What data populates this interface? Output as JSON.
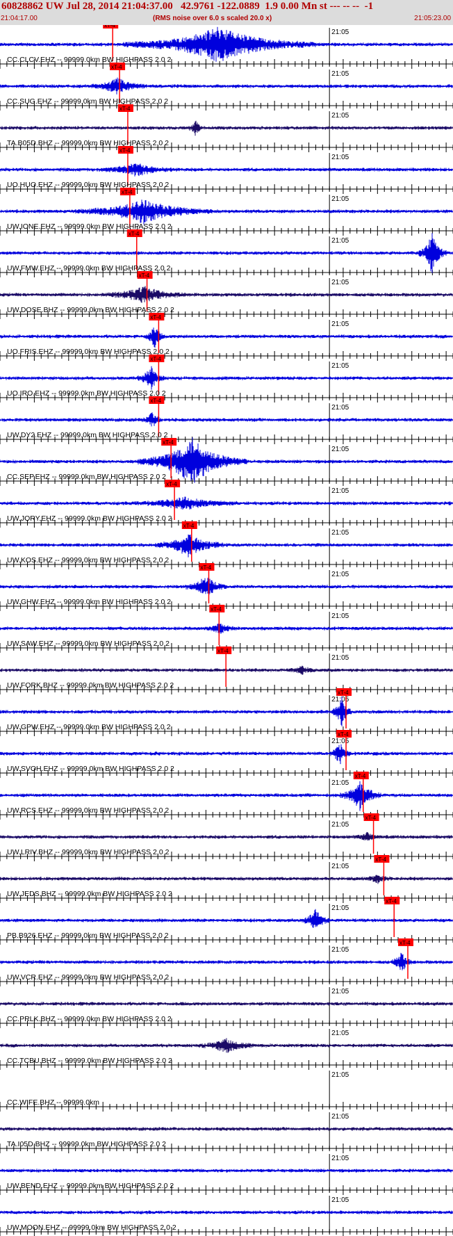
{
  "header": {
    "title": "60828862 UW Jul 28, 2014 21:04:37.00   42.9761 -122.0889  1.9 0.00 Mn st --- -- --  -1",
    "start_time": "21:04:17.00",
    "rms_note": "(RMS noise over 6.0 s scaled 20.0 x)",
    "end_time": "21:05:23.00"
  },
  "colors": {
    "trace": "#0000dd",
    "trace_dark": "#1a0a66",
    "pick": "#ff0000",
    "axis": "#000000",
    "header_text": "#b00000"
  },
  "chart_data": {
    "type": "line",
    "title": "60828862 UW Jul 28, 2014 21:04:37.00",
    "time_range": [
      "21:04:17.00",
      "21:05:23.00"
    ],
    "minute_mark": "21:05",
    "pick_label": "xT-4",
    "series": [
      {
        "label": "CC.CLCV.EHZ -- 99999.0km BW  HIGHPASS  2.0  2",
        "pick_s": 15.0,
        "color": "blue",
        "event": {
          "center": 32,
          "width": 14,
          "amp": 4.5
        }
      },
      {
        "label": "CC.SUG.EHZ -- 99999.0km BW  HIGHPASS  2.0  2",
        "pick_s": 16.0,
        "color": "blue",
        "event": {
          "center": 17.2,
          "width": 4,
          "amp": 2
        }
      },
      {
        "label": "TA.B05D.BHZ -- 99999.0km BW  HIGHPASS  2.0  2",
        "pick_s": 17.2,
        "color": "dark",
        "event": {
          "center": 28.5,
          "width": 1,
          "amp": 2
        }
      },
      {
        "label": "UO.HUO.EHZ -- 99999.0km BW  HIGHPASS  2.0  2",
        "pick_s": 17.2,
        "color": "blue",
        "event": {
          "center": 20,
          "width": 6,
          "amp": 1.5
        }
      },
      {
        "label": "UW.IONE.EHZ -- 99999.0km BW  HIGHPASS  2.0  2",
        "pick_s": 17.5,
        "color": "blue",
        "event": {
          "center": 21,
          "width": 10,
          "amp": 3
        }
      },
      {
        "label": "UW.FMW.EHZ -- 99999.0km BW  HIGHPASS  2.0  2",
        "pick_s": 18.5,
        "color": "blue",
        "event": {
          "center": 63,
          "width": 2,
          "amp": 6
        }
      },
      {
        "label": "UW.DOSE.BHZ -- 99999.0km BW  HIGHPASS  2.0  2",
        "pick_s": 20.0,
        "color": "dark",
        "event": {
          "center": 21,
          "width": 6,
          "amp": 2
        }
      },
      {
        "label": "UO.FRIS.EHZ -- 99999.0km BW  HIGHPASS  2.0  2",
        "pick_s": 21.7,
        "color": "blue",
        "event": {
          "center": 22.5,
          "width": 1.5,
          "amp": 3
        }
      },
      {
        "label": "UO.IRO.EHZ -- 99999.0km BW  HIGHPASS  2.0  2",
        "pick_s": 21.7,
        "color": "blue",
        "event": {
          "center": 22,
          "width": 2,
          "amp": 3
        }
      },
      {
        "label": "UW.DY2.EHZ -- 99999.0km BW  HIGHPASS  2.0  2",
        "pick_s": 21.7,
        "color": "blue",
        "event": {
          "center": 22.2,
          "width": 1.5,
          "amp": 2
        }
      },
      {
        "label": "CC.SEP.EHZ -- 99999.0km BW  HIGHPASS  2.0  2",
        "pick_s": 23.5,
        "color": "blue",
        "event": {
          "center": 28,
          "width": 8,
          "amp": 6
        }
      },
      {
        "label": "UW.JORY.EHZ -- 99999.0km BW  HIGHPASS  2.0  2",
        "pick_s": 24.0,
        "color": "blue",
        "event": {
          "center": 27,
          "width": 8,
          "amp": 1.5
        }
      },
      {
        "label": "UW.KOS.EHZ -- 99999.0km BW  HIGHPASS  2.0  2",
        "pick_s": 26.5,
        "color": "blue",
        "event": {
          "center": 27.5,
          "width": 5,
          "amp": 3
        }
      },
      {
        "label": "UW.GHW.EHZ -- 99999.0km BW  HIGHPASS  2.0  2",
        "pick_s": 29.0,
        "color": "blue",
        "event": {
          "center": 30,
          "width": 3,
          "amp": 3
        }
      },
      {
        "label": "UW.SAW.EHZ -- 99999.0km BW  HIGHPASS  2.0  2",
        "pick_s": 30.5,
        "color": "blue",
        "event": {
          "center": 32,
          "width": 2,
          "amp": 1.5
        }
      },
      {
        "label": "UW.FORK.BHZ -- 99999.0km BW  HIGHPASS  2.0  2",
        "pick_s": 31.5,
        "color": "dark",
        "event": {
          "center": 44,
          "width": 2,
          "amp": 1
        }
      },
      {
        "label": "UW.GPW.EHZ -- 99999.0km BW  HIGHPASS  2.0  2",
        "pick_s": 49.0,
        "color": "blue",
        "event": {
          "center": 49.8,
          "width": 1.5,
          "amp": 4
        }
      },
      {
        "label": "UW.SVOH.EHZ -- 99999.0km BW  HIGHPASS  2.0  2",
        "pick_s": 49.0,
        "color": "blue",
        "event": {
          "center": 49.5,
          "width": 1.5,
          "amp": 3
        }
      },
      {
        "label": "UW.RCS.EHZ -- 99999.0km BW  HIGHPASS  2.0  2",
        "pick_s": 51.5,
        "color": "blue",
        "event": {
          "center": 52.5,
          "width": 3,
          "amp": 4
        }
      },
      {
        "label": "UW.LRIV.BHZ -- 99999.0km BW  HIGHPASS  2.0  2",
        "pick_s": 53.0,
        "color": "dark",
        "event": {
          "center": 53.5,
          "width": 2,
          "amp": 1
        }
      },
      {
        "label": "UW.JEDS.BHZ -- 99999.0km BW  HIGHPASS  2.0  2",
        "pick_s": 54.5,
        "color": "dark",
        "event": {
          "center": 55,
          "width": 2,
          "amp": 1
        }
      },
      {
        "label": "PB.B926.EHZ -- 99999.0km BW  HIGHPASS  2.0  2",
        "pick_s": 56.0,
        "color": "blue",
        "event": {
          "center": 46,
          "width": 2,
          "amp": 3
        }
      },
      {
        "label": "UW.VCR.EHZ -- 99999.0km BW  HIGHPASS  2.0  2",
        "pick_s": 58.0,
        "color": "blue",
        "event": {
          "center": 58.5,
          "width": 1.5,
          "amp": 3
        }
      },
      {
        "label": "CC.PRLK.BHZ -- 99999.0km BW  HIGHPASS  2.0  2",
        "pick_s": null,
        "color": "dark",
        "event": null
      },
      {
        "label": "CC.TCBU.BHZ -- 99999.0km BW  HIGHPASS  2.0  2",
        "pick_s": null,
        "color": "dark",
        "event": {
          "center": 33,
          "width": 4,
          "amp": 1.8
        }
      },
      {
        "label": "CC.WIFE.BHZ -- 99999.0km",
        "pick_s": null,
        "color": "none",
        "event": null
      },
      {
        "label": "TA.I05D.BHZ -- 99999.0km BW  HIGHPASS  2.0  2",
        "pick_s": null,
        "color": "dark",
        "event": null
      },
      {
        "label": "UW.BEND.EHZ -- 99999.0km BW  HIGHPASS  2.0  2",
        "pick_s": null,
        "color": "blue",
        "event": null
      },
      {
        "label": "UW.MOON.EHZ -- 99999.0km BW  HIGHPASS  2.0  2",
        "pick_s": null,
        "color": "blue",
        "event": null
      }
    ]
  }
}
